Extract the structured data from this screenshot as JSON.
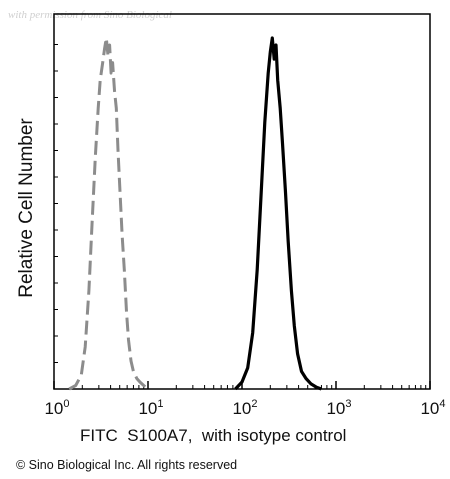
{
  "watermark": "with permission from Sino Biological",
  "copyright": "© Sino Biological Inc. All rights reserved",
  "chart_data": {
    "type": "line",
    "title": "",
    "xlabel": "FITC  S100A7,  with isotype control",
    "ylabel": "Relative Cell Number",
    "xscale": "log",
    "xlim": [
      1,
      10000
    ],
    "ylim": [
      0,
      100
    ],
    "x_ticks": [
      {
        "value": 1,
        "base": "10",
        "exp": "0"
      },
      {
        "value": 10,
        "base": "10",
        "exp": "1"
      },
      {
        "value": 100,
        "base": "10",
        "exp": "2"
      },
      {
        "value": 1000,
        "base": "10",
        "exp": "3"
      },
      {
        "value": 10000,
        "base": "10",
        "exp": "4"
      }
    ],
    "grid": false,
    "series": [
      {
        "role": "isotype",
        "color": "#8c8c8c",
        "dash": true,
        "x": [
          1.45,
          1.7,
          1.95,
          2.15,
          2.35,
          2.55,
          2.75,
          2.95,
          3.1,
          3.3,
          3.45,
          3.6,
          3.75,
          3.9,
          4.05,
          4.2,
          4.4,
          4.6,
          4.8,
          5.0,
          5.3,
          5.6,
          5.9,
          6.2,
          6.6,
          7.0,
          7.6,
          8.2,
          9.0,
          10.0
        ],
        "y": [
          0,
          1,
          4,
          12,
          28,
          48,
          66,
          80,
          88,
          93,
          97,
          100,
          95,
          98,
          90,
          93,
          85,
          80,
          68,
          58,
          44,
          34,
          22,
          14,
          8,
          5,
          3,
          2,
          1,
          0
        ]
      },
      {
        "role": "S100A7",
        "color": "#000000",
        "dash": false,
        "x": [
          85,
          100,
          115,
          130,
          145,
          160,
          175,
          190,
          200,
          210,
          220,
          230,
          240,
          255,
          270,
          290,
          310,
          335,
          360,
          390,
          430,
          480,
          540,
          620,
          700
        ],
        "y": [
          0,
          2,
          6,
          16,
          34,
          56,
          76,
          90,
          96,
          100,
          94,
          98,
          88,
          80,
          70,
          56,
          42,
          28,
          18,
          10,
          5,
          3,
          1.5,
          0.5,
          0
        ]
      }
    ]
  }
}
